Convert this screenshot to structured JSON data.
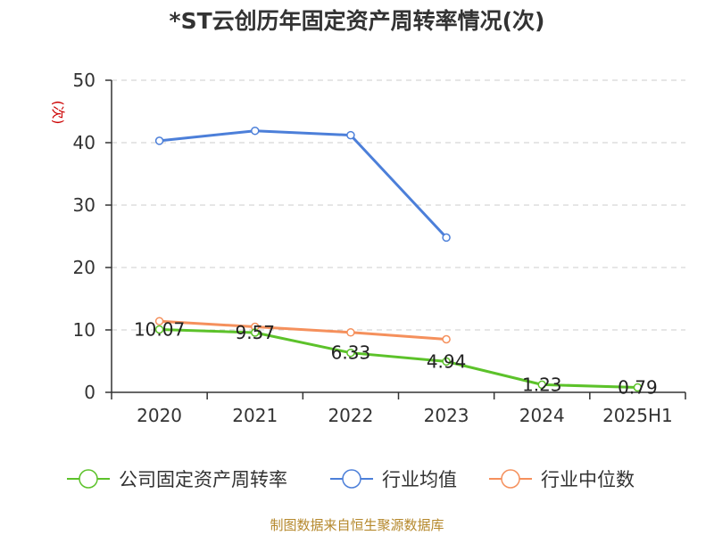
{
  "colors": {
    "series": [
      "#5cc22a",
      "#4c7fd9",
      "#f5905c"
    ],
    "grid": "#cccccc",
    "axis": "#333333",
    "text": "#333333",
    "unit": "#cc0000",
    "source": "#b5882c"
  },
  "chart_data": {
    "type": "line",
    "title": "*ST云创历年固定资产周转率情况(次)",
    "ylabel": "(次)",
    "xlabel": "",
    "categories": [
      "2020",
      "2021",
      "2022",
      "2023",
      "2024",
      "2025H1"
    ],
    "ylim": [
      0,
      50
    ],
    "yticks": [
      "0",
      "10",
      "20",
      "30",
      "40",
      "50"
    ],
    "grid": true,
    "legend_position": "bottom",
    "series": [
      {
        "name": "公司固定资产周转率",
        "values": [
          10.07,
          9.57,
          6.33,
          4.94,
          1.23,
          0.79
        ],
        "labels": [
          "10.07",
          "9.57",
          "6.33",
          "4.94",
          "1.23",
          "0.79"
        ]
      },
      {
        "name": "行业均值",
        "values": [
          40.3,
          41.9,
          41.2,
          24.8,
          null,
          null
        ]
      },
      {
        "name": "行业中位数",
        "values": [
          11.4,
          10.5,
          9.6,
          8.5,
          null,
          null
        ]
      }
    ]
  },
  "source": "制图数据来自恒生聚源数据库"
}
